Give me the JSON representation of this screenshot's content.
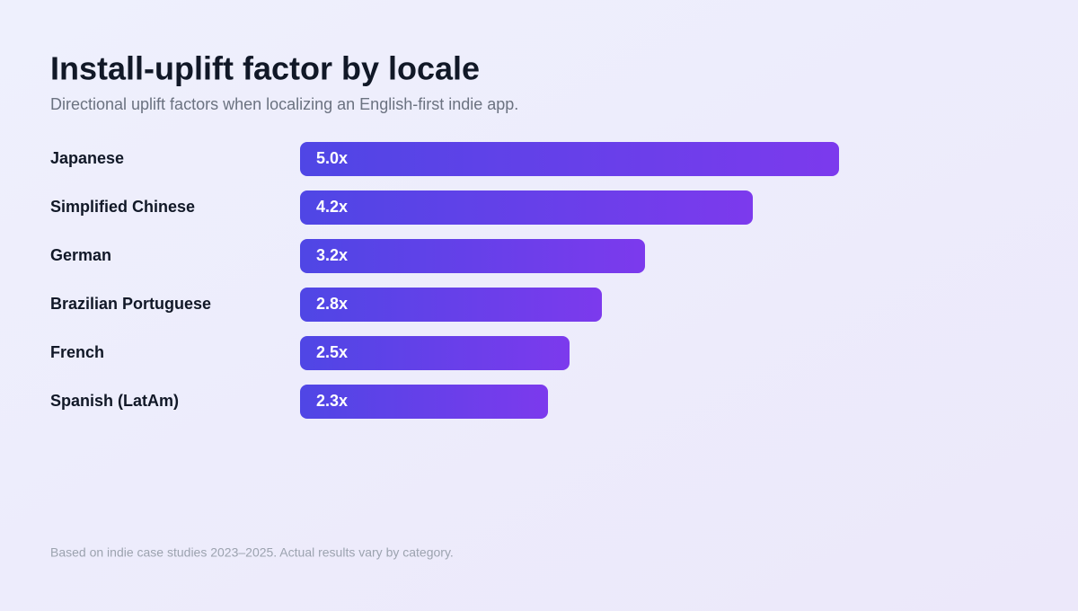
{
  "chart_data": {
    "type": "bar",
    "orientation": "horizontal",
    "title": "Install-uplift factor by locale",
    "subtitle": "Directional uplift factors when localizing an English-first indie app.",
    "categories": [
      "Japanese",
      "Simplified Chinese",
      "German",
      "Brazilian Portuguese",
      "French",
      "Spanish (LatAm)"
    ],
    "values": [
      5.0,
      4.2,
      3.2,
      2.8,
      2.5,
      2.3
    ],
    "value_labels": [
      "5.0x",
      "4.2x",
      "3.2x",
      "2.8x",
      "2.5x",
      "2.3x"
    ],
    "colors": [
      "#4f46e5",
      "#7c3aed"
    ],
    "footnote": "Based on indie case studies 2023–2025. Actual results vary by category."
  }
}
